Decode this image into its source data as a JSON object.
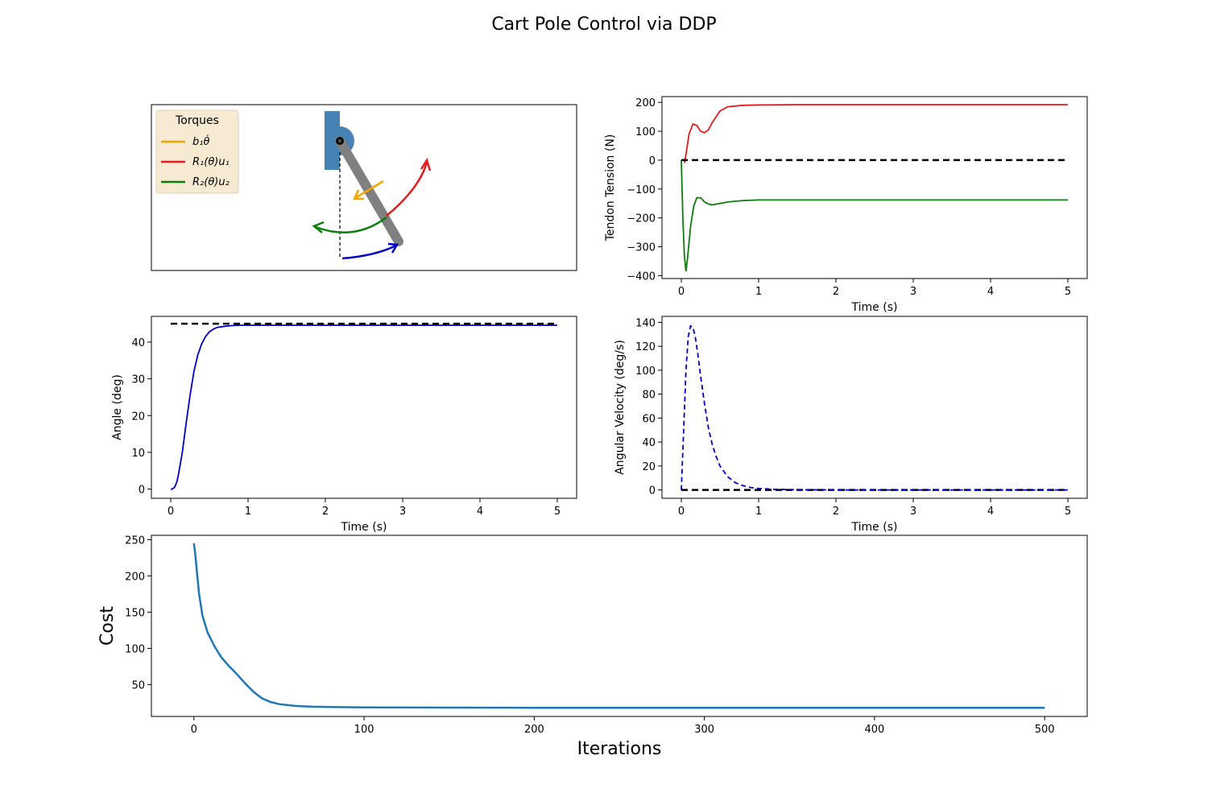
{
  "title": "Cart Pole Control via DDP",
  "colors": {
    "red": "#e41a1c",
    "green": "#0a7d0a",
    "blue": "#0000cc",
    "orange": "#f5a400",
    "steel": "#4682b4",
    "pole": "#808080",
    "legend_bg": "#f7ead2",
    "cost": "#1f77b4"
  },
  "diagram": {
    "legend_title": "Torques",
    "legend_entries": [
      {
        "label": "b₁θ̇",
        "color": "#f5a400"
      },
      {
        "label": "R₁(θ)u₁",
        "color": "#e41a1c"
      },
      {
        "label": "R₂(θ)u₂",
        "color": "#0a7d0a"
      }
    ]
  },
  "chart_data": [
    {
      "id": "tension",
      "type": "line",
      "xlabel": "Time (s)",
      "ylabel": "Tendon Tension (N)",
      "xlim": [
        -0.25,
        5.25
      ],
      "ylim": [
        -410,
        220
      ],
      "xticks": [
        "0",
        "1",
        "2",
        "3",
        "4",
        "5"
      ],
      "yticks": [
        "-400",
        "-300",
        "-200",
        "-100",
        "0",
        "100",
        "200"
      ],
      "series": [
        {
          "color": "#e41a1c",
          "style": "solid",
          "x": [
            0.04,
            0.06,
            0.1,
            0.15,
            0.2,
            0.25,
            0.3,
            0.35,
            0.4,
            0.5,
            0.6,
            0.8,
            1.0,
            1.5,
            2,
            3,
            4,
            5
          ],
          "y": [
            -10,
            20,
            90,
            125,
            120,
            100,
            95,
            105,
            130,
            170,
            185,
            190,
            191,
            192,
            192,
            192,
            192,
            192
          ]
        },
        {
          "color": "#0a7d0a",
          "style": "solid",
          "x": [
            0,
            0.02,
            0.04,
            0.06,
            0.08,
            0.12,
            0.16,
            0.2,
            0.25,
            0.3,
            0.35,
            0.4,
            0.5,
            0.6,
            0.8,
            1.0,
            1.5,
            2,
            3,
            4,
            5
          ],
          "y": [
            0,
            -200,
            -330,
            -385,
            -340,
            -230,
            -160,
            -130,
            -130,
            -145,
            -152,
            -155,
            -150,
            -145,
            -140,
            -138,
            -138,
            -138,
            -138,
            -138,
            -138
          ]
        },
        {
          "color": "#000000",
          "style": "dashed",
          "x": [
            0,
            5
          ],
          "y": [
            0,
            0
          ]
        }
      ]
    },
    {
      "id": "angle",
      "type": "line",
      "xlabel": "Time (s)",
      "ylabel": "Angle (deg)",
      "xlim": [
        -0.25,
        5.25
      ],
      "ylim": [
        -2.5,
        47
      ],
      "xticks": [
        "0",
        "1",
        "2",
        "3",
        "4",
        "5"
      ],
      "yticks": [
        "0",
        "10",
        "20",
        "30",
        "40"
      ],
      "series": [
        {
          "color": "#0000cc",
          "style": "solid",
          "x": [
            0,
            0.02,
            0.05,
            0.08,
            0.1,
            0.15,
            0.2,
            0.25,
            0.3,
            0.35,
            0.4,
            0.45,
            0.5,
            0.55,
            0.6,
            0.7,
            0.8,
            0.9,
            1.0,
            1.2,
            1.5,
            2,
            3,
            4,
            5
          ],
          "y": [
            0,
            0,
            0.5,
            2,
            4,
            10,
            18,
            25.5,
            32,
            36.5,
            39.5,
            41.5,
            42.8,
            43.5,
            44,
            44.3,
            44.5,
            44.6,
            44.6,
            44.6,
            44.6,
            44.6,
            44.6,
            44.6,
            44.6
          ]
        },
        {
          "color": "#000000",
          "style": "dashed",
          "x": [
            0,
            5
          ],
          "y": [
            45,
            45
          ]
        }
      ]
    },
    {
      "id": "angvel",
      "type": "line",
      "xlabel": "Time (s)",
      "ylabel": "Angular Velocity (deg/s)",
      "xlim": [
        -0.25,
        5.25
      ],
      "ylim": [
        -7,
        145
      ],
      "xticks": [
        "0",
        "1",
        "2",
        "3",
        "4",
        "5"
      ],
      "yticks": [
        "0",
        "20",
        "40",
        "60",
        "80",
        "100",
        "120",
        "140"
      ],
      "series": [
        {
          "color": "#000000",
          "style": "dashed",
          "x": [
            0,
            5
          ],
          "y": [
            0,
            0
          ]
        },
        {
          "color": "#0000cc",
          "style": "dashed",
          "x": [
            0,
            0.03,
            0.06,
            0.09,
            0.12,
            0.15,
            0.18,
            0.21,
            0.25,
            0.3,
            0.35,
            0.4,
            0.45,
            0.5,
            0.6,
            0.7,
            0.8,
            0.9,
            1.0,
            1.2,
            1.5,
            2,
            3,
            4,
            5
          ],
          "y": [
            0,
            50,
            100,
            128,
            137,
            136,
            128,
            115,
            95,
            72,
            52,
            38,
            28,
            20,
            11,
            6,
            3.5,
            2,
            1.2,
            0.5,
            0.2,
            0,
            0,
            0,
            0
          ]
        }
      ]
    },
    {
      "id": "cost",
      "type": "line",
      "xlabel": "Iterations",
      "ylabel": "Cost",
      "xlim": [
        -25,
        525
      ],
      "ylim": [
        6,
        256
      ],
      "xticks": [
        "0",
        "100",
        "200",
        "300",
        "400",
        "500"
      ],
      "yticks": [
        "50",
        "100",
        "150",
        "200",
        "250"
      ],
      "series": [
        {
          "color": "#1f77b4",
          "style": "solid",
          "x": [
            0,
            1,
            2,
            3,
            5,
            8,
            12,
            16,
            20,
            25,
            30,
            35,
            40,
            45,
            50,
            60,
            70,
            80,
            100,
            150,
            200,
            300,
            400,
            500
          ],
          "y": [
            245,
            225,
            200,
            175,
            145,
            122,
            103,
            88,
            77,
            65,
            52,
            40,
            31,
            26,
            23,
            20.5,
            19.5,
            19,
            18.5,
            18.2,
            18,
            18,
            18,
            18
          ]
        }
      ]
    }
  ]
}
